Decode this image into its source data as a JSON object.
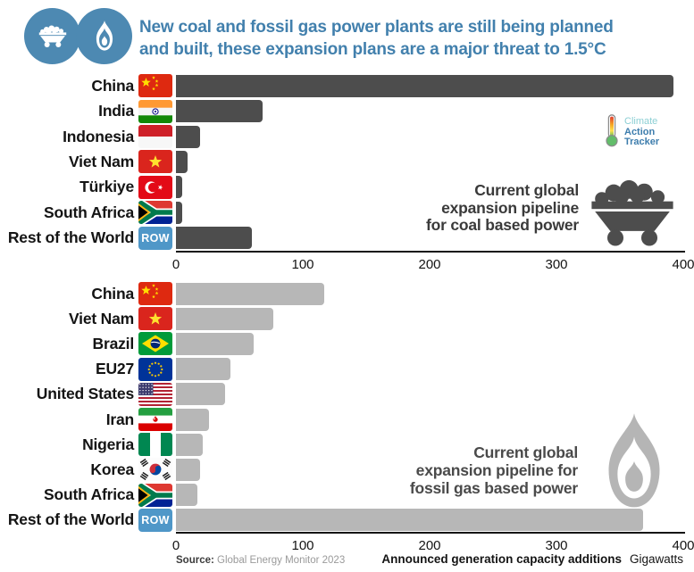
{
  "header": {
    "title_line1": "New coal and fossil gas power plants are still being planned",
    "title_line2": "and built, these expansion plans are a major threat to 1.5°C",
    "accent_color": "#4280ad",
    "icons": [
      "coal-cart-icon",
      "flame-icon"
    ]
  },
  "logo": {
    "line1": "Climate",
    "line2": "Action",
    "line3": "Tracker"
  },
  "chart_data": [
    {
      "type": "bar",
      "orientation": "horizontal",
      "title": "Current global expansion pipeline for coal based power",
      "annotation_lines": [
        "Current global",
        "expansion pipeline",
        "for coal based power"
      ],
      "categories": [
        "China",
        "India",
        "Indonesia",
        "Viet Nam",
        "Türkiye",
        "South Africa",
        "Rest of the World"
      ],
      "values": [
        392,
        68,
        19,
        9,
        5,
        5,
        60
      ],
      "flags": [
        "cn",
        "in",
        "id",
        "vn",
        "tr",
        "za",
        "row"
      ],
      "xlim": [
        0,
        400
      ],
      "ticks": [
        0,
        100,
        200,
        300,
        400
      ],
      "bar_color": "#4d4d4d",
      "grid": false,
      "unit": "Gigawatts"
    },
    {
      "type": "bar",
      "orientation": "horizontal",
      "title": "Current global expansion pipeline for fossil gas based power",
      "annotation_lines": [
        "Current global",
        "expansion pipeline for",
        "fossil gas based power"
      ],
      "categories": [
        "China",
        "Viet Nam",
        "Brazil",
        "EU27",
        "United States",
        "Iran",
        "Nigeria",
        "Korea",
        "South Africa",
        "Rest of the World"
      ],
      "values": [
        117,
        77,
        61,
        43,
        39,
        26,
        21,
        19,
        17,
        368
      ],
      "flags": [
        "cn",
        "vn",
        "br",
        "eu",
        "us",
        "ir",
        "ng",
        "kr",
        "za",
        "row"
      ],
      "xlim": [
        0,
        400
      ],
      "ticks": [
        0,
        100,
        200,
        300,
        400
      ],
      "bar_color": "#b7b7b7",
      "grid": false,
      "xlabel": "Announced generation capacity additions",
      "unit": "Gigawatts"
    }
  ],
  "badges": {
    "row": "ROW"
  },
  "footer": {
    "source_label": "Source:",
    "source_text": " Global Energy Monitor 2023",
    "axis_title": "Announced generation capacity additions",
    "axis_unit": "Gigawatts"
  }
}
